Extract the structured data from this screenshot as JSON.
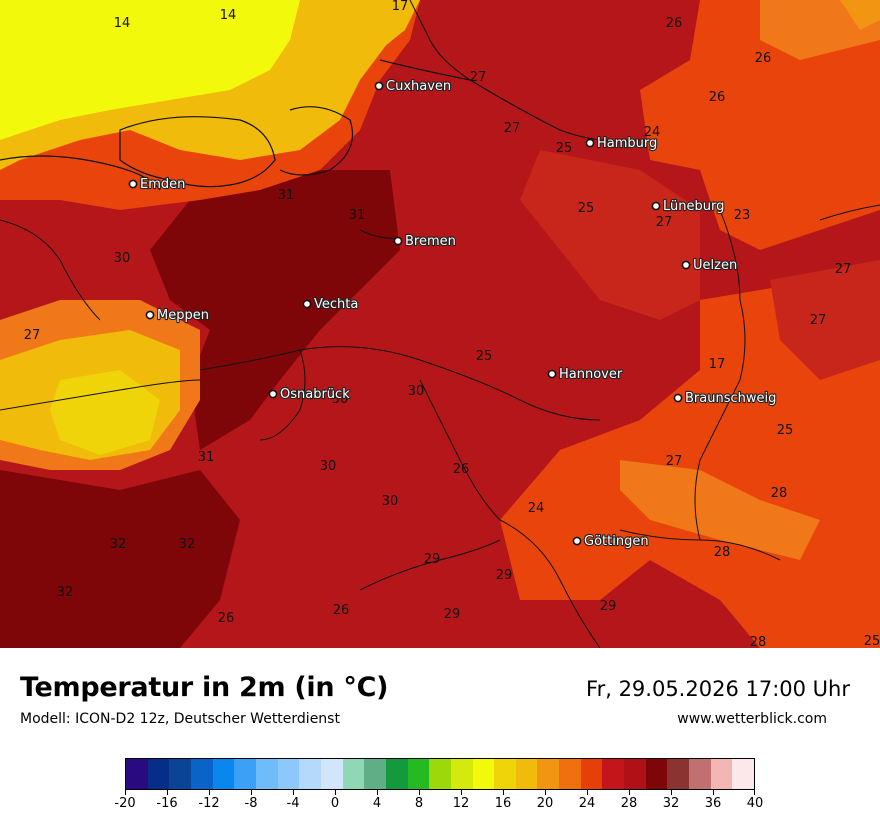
{
  "map": {
    "cities": [
      {
        "name": "Cuxhaven"
      },
      {
        "name": "Hamburg"
      },
      {
        "name": "Emden"
      },
      {
        "name": "Lüneburg"
      },
      {
        "name": "Bremen"
      },
      {
        "name": "Uelzen"
      },
      {
        "name": "Vechta"
      },
      {
        "name": "Meppen"
      },
      {
        "name": "Hannover"
      },
      {
        "name": "Osnabrück"
      },
      {
        "name": "Braunschweig"
      },
      {
        "name": "Göttingen"
      }
    ],
    "iso_labels": [
      "14",
      "14",
      "17",
      "26",
      "27",
      "26",
      "27",
      "24",
      "26",
      "25",
      "31",
      "25",
      "31",
      "27",
      "23",
      "30",
      "27",
      "27",
      "27",
      "25",
      "30",
      "17",
      "30",
      "31",
      "25",
      "30",
      "26",
      "27",
      "28",
      "24",
      "30",
      "32",
      "32",
      "29",
      "29",
      "28",
      "32",
      "26",
      "26",
      "29",
      "29",
      "28",
      "25"
    ]
  },
  "footer": {
    "title": "Temperatur in 2m (in °C)",
    "model": "Modell: ICON-D2 12z, Deutscher Wetterdienst",
    "datetime": "Fr, 29.05.2026 17:00 Uhr",
    "website": "www.wetterblick.com"
  },
  "legend": {
    "ticks": [
      "-20",
      "-16",
      "-12",
      "-8",
      "-4",
      "0",
      "4",
      "8",
      "12",
      "16",
      "20",
      "24",
      "28",
      "32",
      "36",
      "40"
    ],
    "colors": [
      "#2a0a80",
      "#052d8a",
      "#0a4595",
      "#0a63c8",
      "#0a86ef",
      "#3aa1f7",
      "#6ebcf9",
      "#8dc8fa",
      "#b3d9fb",
      "#d2e6fb",
      "#8fd8b6",
      "#5fae86",
      "#129a3d",
      "#25b922",
      "#9bd90a",
      "#d3ea0c",
      "#f2f90a",
      "#f0d40a",
      "#f0bb0a",
      "#f29513",
      "#f07010",
      "#e63f0a",
      "#c3151a",
      "#ae1218",
      "#7e0508",
      "#8b3330",
      "#c07070",
      "#f4b6b4",
      "#fce8ea"
    ]
  }
}
